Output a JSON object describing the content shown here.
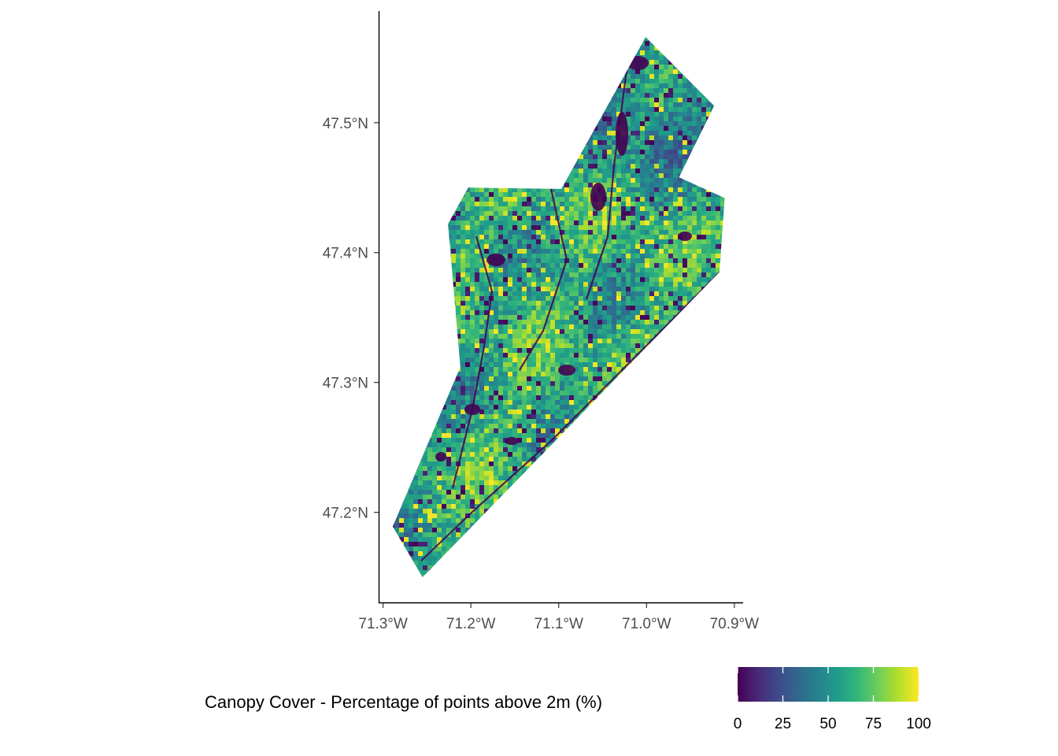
{
  "chart_data": {
    "type": "heatmap",
    "subtype": "raster-map",
    "title": "",
    "xlabel": "",
    "ylabel": "",
    "x_axis": {
      "ticks": [
        -71.3,
        -71.2,
        -71.1,
        -71.0,
        -70.9
      ],
      "tick_labels": [
        "71.3°W",
        "71.2°W",
        "71.1°W",
        "71.0°W",
        "70.9°W"
      ],
      "range": [
        -71.305,
        -70.89
      ]
    },
    "y_axis": {
      "ticks": [
        47.2,
        47.3,
        47.4,
        47.5
      ],
      "tick_labels": [
        "47.2°N",
        "47.3°N",
        "47.4°N",
        "47.5°N"
      ],
      "range": [
        47.13,
        47.586
      ]
    },
    "region_outline": [
      [
        -71.001,
        47.566
      ],
      [
        -70.923,
        47.513
      ],
      [
        -70.963,
        47.458
      ],
      [
        -70.911,
        47.442
      ],
      [
        -70.917,
        47.385
      ],
      [
        -71.255,
        47.15
      ],
      [
        -71.289,
        47.189
      ],
      [
        -71.212,
        47.312
      ],
      [
        -71.226,
        47.422
      ],
      [
        -71.203,
        47.45
      ],
      [
        -71.097,
        47.449
      ]
    ],
    "legend": {
      "title": "Canopy Cover - Percentage of points above 2m (%)",
      "position": "bottom",
      "range": [
        0,
        100
      ],
      "ticks": [
        0,
        25,
        50,
        75,
        100
      ],
      "colormap": "viridis",
      "stops": [
        "#440154",
        "#482878",
        "#3e4a89",
        "#31688e",
        "#26828e",
        "#1f9e89",
        "#35b779",
        "#6ece58",
        "#b5de2b",
        "#fde725"
      ]
    },
    "grid": false
  }
}
